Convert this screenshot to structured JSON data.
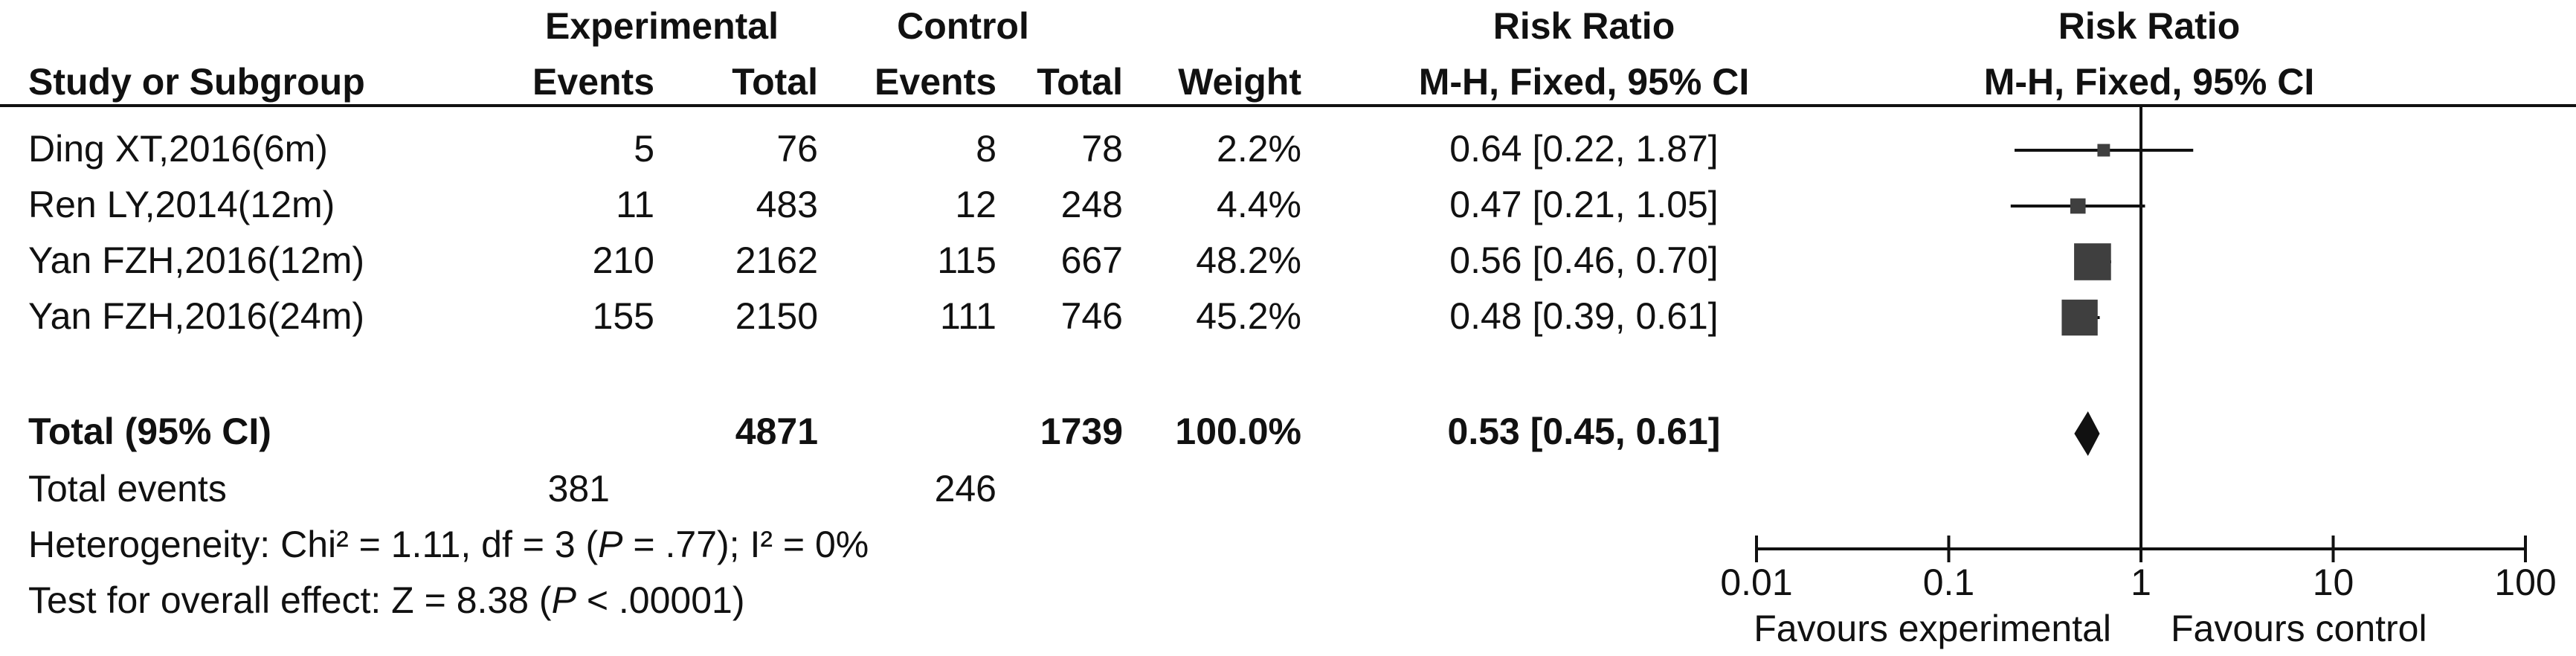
{
  "header": {
    "group_experimental": "Experimental",
    "group_control": "Control",
    "risk_ratio_title": "Risk Ratio",
    "risk_ratio_method": "M-H, Fixed, 95% CI",
    "plot_title": "Risk Ratio",
    "plot_method": "M-H, Fixed, 95% CI",
    "col_study": "Study or Subgroup",
    "col_events_e": "Events",
    "col_total_e": "Total",
    "col_events_c": "Events",
    "col_total_c": "Total",
    "col_weight": "Weight"
  },
  "studies": [
    {
      "name": "Ding XT,2016(6m)",
      "events_e": "5",
      "total_e": "76",
      "events_c": "8",
      "total_c": "78",
      "weight": "2.2%",
      "ci_text": "0.64 [0.22, 1.87]"
    },
    {
      "name": "Ren LY,2014(12m)",
      "events_e": "11",
      "total_e": "483",
      "events_c": "12",
      "total_c": "248",
      "weight": "4.4%",
      "ci_text": "0.47 [0.21, 1.05]"
    },
    {
      "name": "Yan FZH,2016(12m)",
      "events_e": "210",
      "total_e": "2162",
      "events_c": "115",
      "total_c": "667",
      "weight": "48.2%",
      "ci_text": "0.56 [0.46, 0.70]"
    },
    {
      "name": "Yan FZH,2016(24m)",
      "events_e": "155",
      "total_e": "2150",
      "events_c": "111",
      "total_c": "746",
      "weight": "45.2%",
      "ci_text": "0.48 [0.39, 0.61]"
    }
  ],
  "total": {
    "label": "Total (95% CI)",
    "total_e": "4871",
    "total_c": "1739",
    "weight": "100.0%",
    "ci_text": "0.53 [0.45, 0.61]"
  },
  "total_events": {
    "label": "Total events",
    "events_e": "381",
    "events_c": "246"
  },
  "heterogeneity": {
    "prefix": "Heterogeneity: Chi² = 1.11, df = 3 (",
    "p": "P",
    "suffix": " = .77); I² = 0%"
  },
  "overall_effect": {
    "prefix": "Test for overall effect: Z = 8.38 (",
    "p": "P",
    "suffix": " < .00001)"
  },
  "chart_data": {
    "type": "scatter",
    "title": "Risk Ratio",
    "subtitle": "M-H, Fixed, 95% CI",
    "x_scale": "log",
    "xlim": [
      0.01,
      100
    ],
    "x_ticks": [
      0.01,
      0.1,
      1,
      10,
      100
    ],
    "x_tick_labels": [
      "0.01",
      "0.1",
      "1",
      "10",
      "100"
    ],
    "null_line": 1,
    "favours_left": "Favours experimental",
    "favours_right": "Favours control",
    "grid": false,
    "studies": [
      {
        "rr": 0.64,
        "lower": 0.22,
        "upper": 1.87,
        "weight": 2.2
      },
      {
        "rr": 0.47,
        "lower": 0.21,
        "upper": 1.05,
        "weight": 4.4
      },
      {
        "rr": 0.56,
        "lower": 0.46,
        "upper": 0.7,
        "weight": 48.2
      },
      {
        "rr": 0.48,
        "lower": 0.39,
        "upper": 0.61,
        "weight": 45.2
      }
    ],
    "pooled": {
      "rr": 0.53,
      "lower": 0.45,
      "upper": 0.61
    }
  }
}
